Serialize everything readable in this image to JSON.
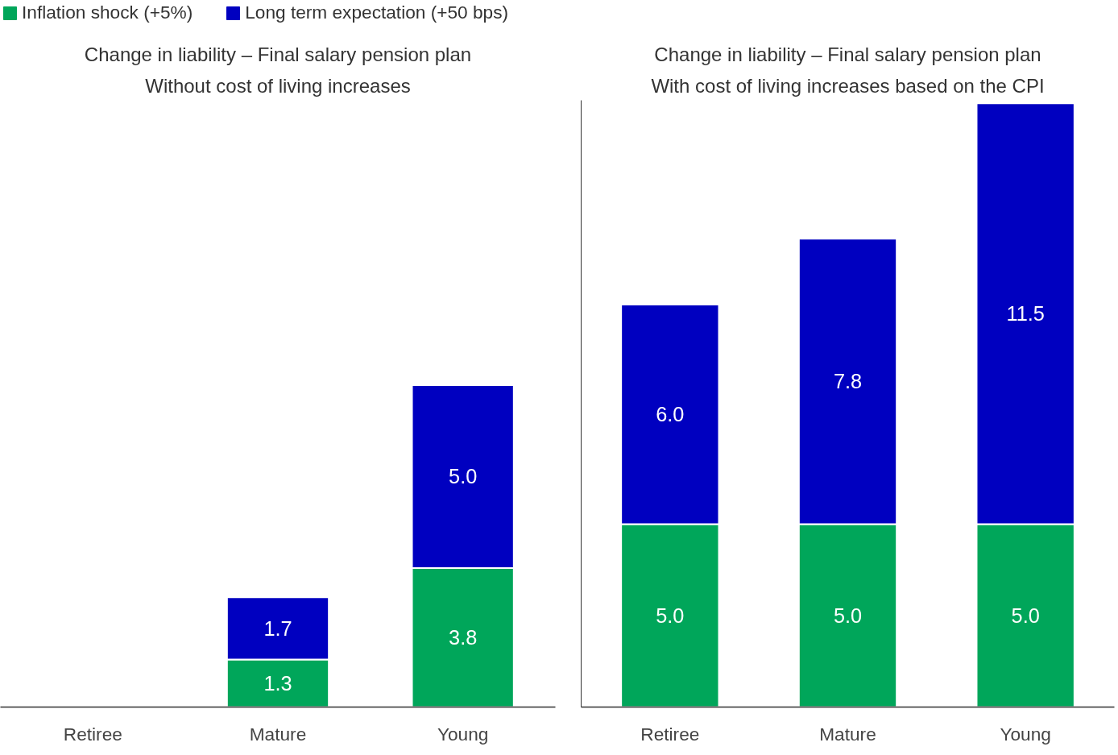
{
  "chart_data": [
    {
      "type": "bar",
      "stacked": true,
      "title": "Change in liability – Final salary pension plan",
      "subtitle": "Without cost of living increases",
      "categories": [
        "Retiree",
        "Mature",
        "Young"
      ],
      "legend": "top left",
      "grid": false,
      "series": [
        {
          "name": "Inflation shock (+5%)",
          "color": "#00a65a",
          "values": [
            null,
            1.3,
            3.8
          ],
          "value_labels": [
            null,
            "1.3",
            "3.8"
          ]
        },
        {
          "name": "Long term expectation (+50 bps)",
          "color": "#0000c0",
          "values": [
            null,
            1.7,
            5.0
          ],
          "value_labels": [
            null,
            "1.7",
            "5.0"
          ]
        }
      ]
    },
    {
      "type": "bar",
      "stacked": true,
      "title": "Change in liability – Final salary pension plan",
      "subtitle": "With cost of living increases based on the CPI",
      "categories": [
        "Retiree",
        "Mature",
        "Young"
      ],
      "grid": false,
      "series": [
        {
          "color": "#00a65a",
          "values": [
            5.0,
            5.0,
            5.0
          ],
          "value_labels": [
            "5.0",
            "5.0",
            "5.0"
          ]
        },
        {
          "color": "#0000c0",
          "values": [
            6.0,
            7.8,
            11.5
          ],
          "value_labels": [
            "6.0",
            "7.8",
            "11.5"
          ]
        }
      ]
    }
  ]
}
